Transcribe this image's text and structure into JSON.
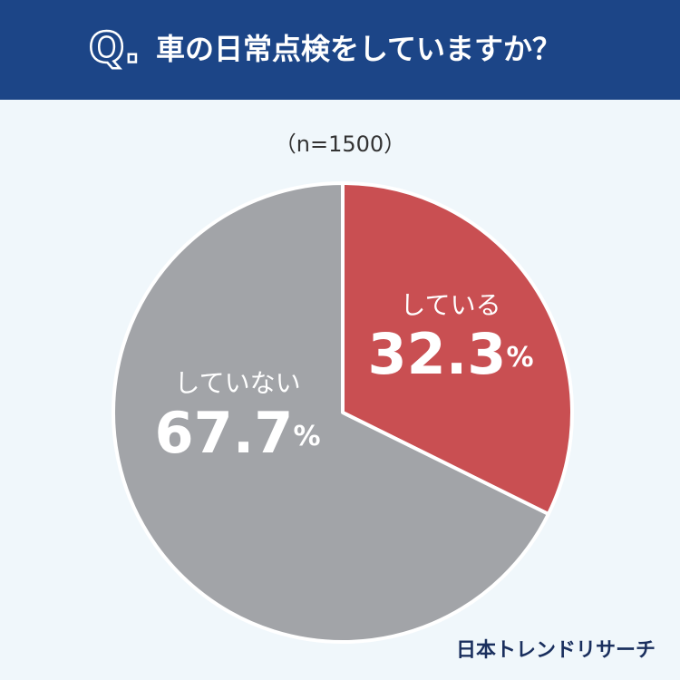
{
  "chart_data": {
    "type": "pie",
    "badge": "Q.",
    "title": "車の日常点検をしていますか？",
    "subtitle": "（n=1500）",
    "categories": [
      "している",
      "していない"
    ],
    "values": [
      32.3,
      67.7
    ],
    "value_labels": [
      "32.3%",
      "67.7%"
    ],
    "colors": [
      "#c94f52",
      "#a2a4a8"
    ],
    "brand": "日本トレンドリサーチ"
  }
}
